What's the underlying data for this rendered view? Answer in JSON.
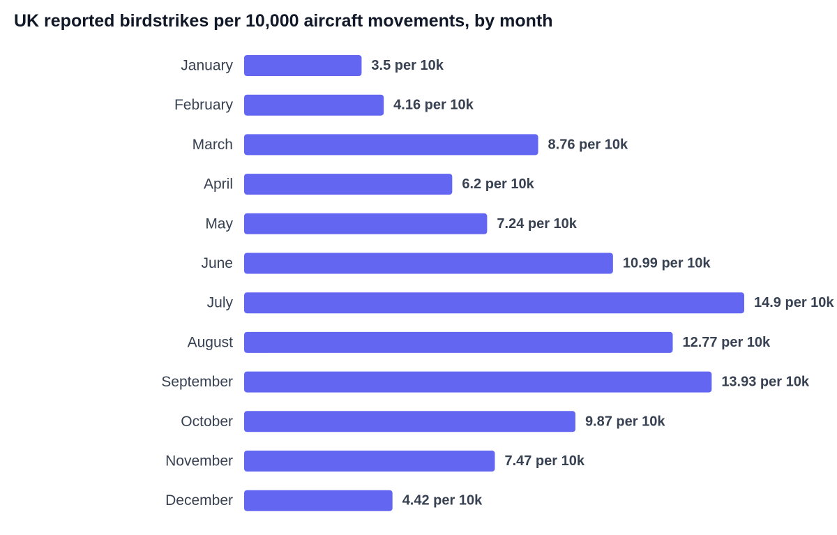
{
  "chart_data": {
    "type": "bar",
    "orientation": "horizontal",
    "title": "UK reported birdstrikes per 10,000 aircraft movements, by month",
    "categories": [
      "January",
      "February",
      "March",
      "April",
      "May",
      "June",
      "July",
      "August",
      "September",
      "October",
      "November",
      "December"
    ],
    "values": [
      3.5,
      4.16,
      8.76,
      6.2,
      7.24,
      10.99,
      14.9,
      12.77,
      13.93,
      9.87,
      7.47,
      4.42
    ],
    "value_labels": [
      "3.5 per 10k",
      "4.16 per 10k",
      "8.76 per 10k",
      "6.2 per 10k",
      "7.24 per 10k",
      "10.99 per 10k",
      "14.9 per 10k",
      "12.77 per 10k",
      "13.93 per 10k",
      "9.87 per 10k",
      "7.47 per 10k",
      "4.42 per 10k"
    ],
    "xlim": [
      0,
      14.9
    ],
    "grid": false,
    "legend": "none",
    "bar_color": "#6366f1"
  }
}
